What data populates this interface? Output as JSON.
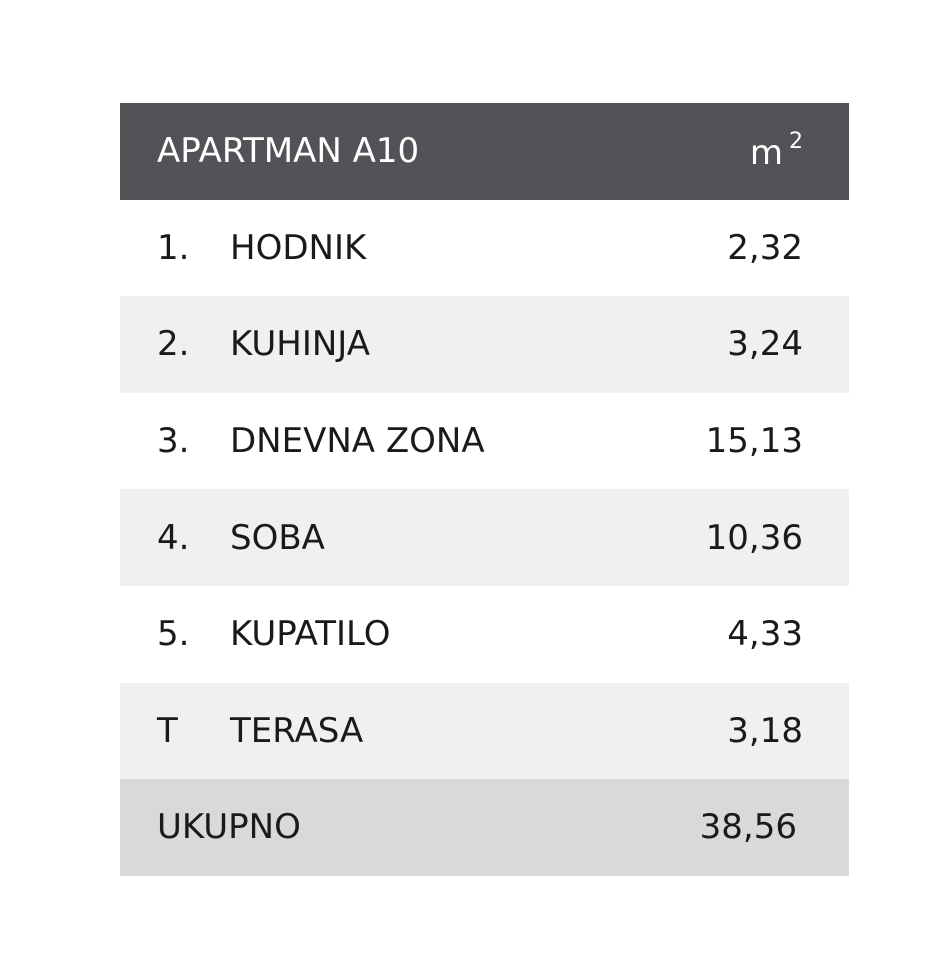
{
  "header": {
    "title": "APARTMAN A10",
    "unit": {
      "base": "m",
      "exponent": "2"
    }
  },
  "table": {
    "rows": [
      [
        "1.",
        "HODNIK",
        "2,32"
      ],
      [
        "2.",
        "KUHINJA",
        "3,24"
      ],
      [
        "3.",
        "DNEVNA ZONA",
        "15,13"
      ],
      [
        "4.",
        "SOBA",
        "10,36"
      ],
      [
        "5.",
        "KUPATILO",
        "4,33"
      ],
      [
        "T",
        "TERASA",
        "3,18"
      ]
    ]
  },
  "total": {
    "label": "UKUPNO",
    "value": "38,56"
  }
}
